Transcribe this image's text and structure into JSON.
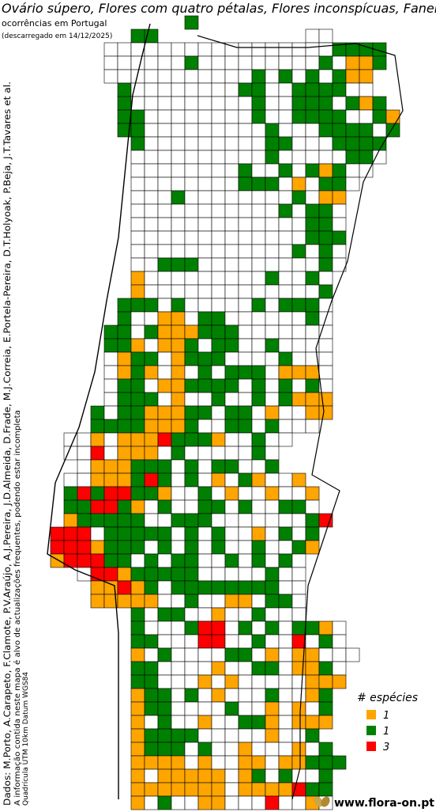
{
  "header": {
    "title": "Ovário súpero, Flores com quatro pétalas, Flores inconspícuas, Faneró",
    "subtitle": "ocorrências em Portugal",
    "download_note": "(descarregado em 14/12/2025)"
  },
  "credits": {
    "data": "Dados: M.Porto, A.Carapeto, F.Clamote, P.V.Araújo, A.J.Pereira, J.D.Almeida, D.Frade, M.J.Correia, E.Portela-Pereira, D.T.Holyoak, P.Beja, J.T.Tavares et al.",
    "disclaimer": "A informação contida neste mapa é alvo de actualizações frequentes, podendo estar incompleta",
    "grid_info": "Quadrícula UTM 10km Datum WGS84"
  },
  "legend": {
    "title": "# espécies",
    "items": [
      {
        "label": "1",
        "color": "#ffa500"
      },
      {
        "label": "1",
        "color": "#008000"
      },
      {
        "label": "3",
        "color": "#ff0000"
      }
    ]
  },
  "footer": {
    "site": "www.flora-on.pt"
  }
}
